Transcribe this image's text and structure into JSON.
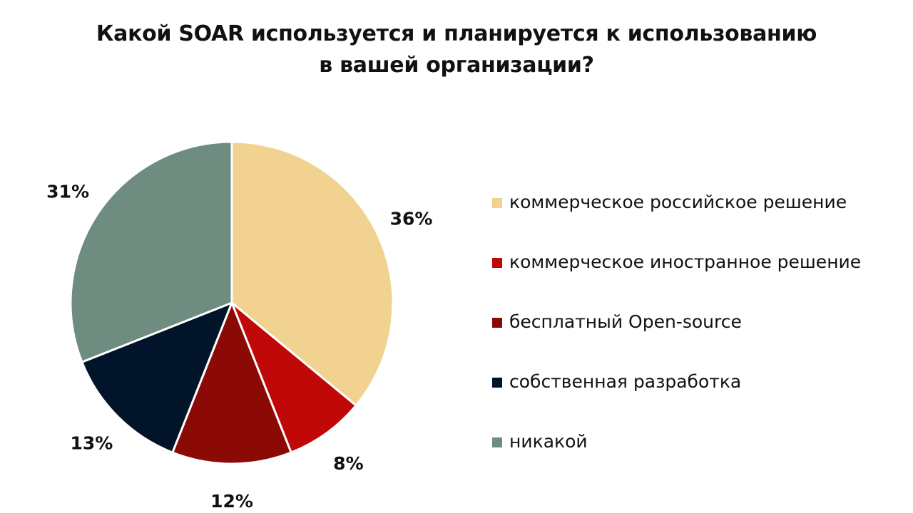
{
  "title": {
    "line1": "Какой SOAR используется и планируется к использованию",
    "line2": "в вашей организации?"
  },
  "chart_data": {
    "type": "pie",
    "title": "Какой SOAR используется и планируется к использованию в вашей организации?",
    "legend_position": "right",
    "start": "top, clockwise",
    "slices": [
      {
        "label": "коммерческое российское решение",
        "value": 36,
        "display": "36%",
        "color": "#F1D290"
      },
      {
        "label": "коммерческое иностранное решение",
        "value": 8,
        "display": "8%",
        "color": "#C00808"
      },
      {
        "label": "бесплатный Open-source",
        "value": 12,
        "display": "12%",
        "color": "#8C0A06"
      },
      {
        "label": "собственная разработка",
        "value": 13,
        "display": "13%",
        "color": "#02142A"
      },
      {
        "label": "никакой",
        "value": 31,
        "display": "31%",
        "color": "#6F8C80"
      }
    ]
  }
}
